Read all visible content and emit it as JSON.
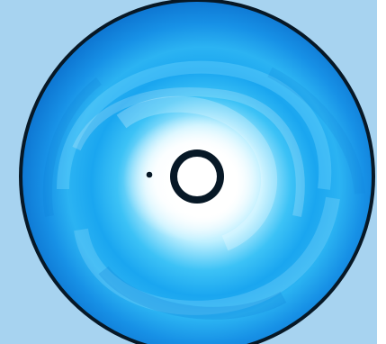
{
  "image": {
    "subject": "",
    "palette": {
      "background": "#a7d3f0",
      "disk_outer": "#1599ee",
      "disk_mid": "#36b8f2",
      "disk_light": "#b6ecff",
      "inner_glow": "#ffffff",
      "rim": "#071826",
      "hole": "#ffffff"
    }
  }
}
